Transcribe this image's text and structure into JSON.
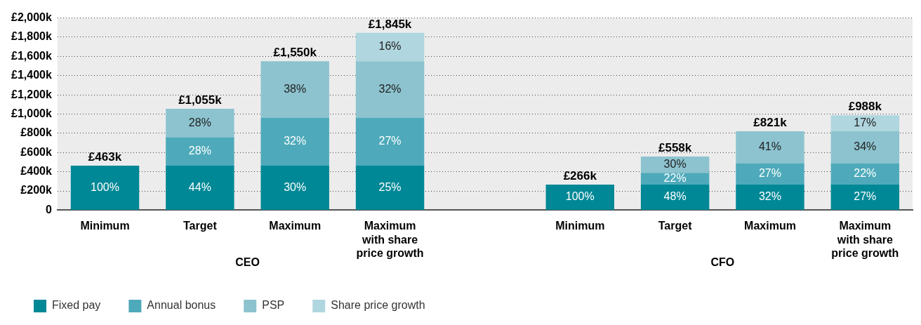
{
  "chart_data": {
    "type": "bar",
    "stacked": true,
    "categories": [
      "Minimum",
      "Target",
      "Maximum",
      "Maximum with share price growth",
      null,
      "Minimum",
      "Target",
      "Maximum",
      "Maximum with share price growth"
    ],
    "series": [
      {
        "name": "Fixed pay",
        "color": "#008896",
        "values": [
          463,
          463,
          463,
          463,
          null,
          266,
          266,
          266,
          266
        ]
      },
      {
        "name": "Annual bonus",
        "color": "#4eaaba",
        "values": [
          null,
          296,
          496,
          496,
          null,
          null,
          123,
          222,
          222
        ]
      },
      {
        "name": "PSP",
        "color": "#8cc3cf",
        "values": [
          null,
          296,
          591,
          591,
          null,
          null,
          169,
          333,
          333
        ]
      },
      {
        "name": "Share price growth",
        "color": "#b0d6df",
        "values": [
          null,
          null,
          null,
          295,
          null,
          null,
          null,
          null,
          167
        ]
      }
    ],
    "totals": [
      "£463k",
      "£1,055k",
      "£1,550k",
      "£1,845k",
      null,
      "£266k",
      "£558k",
      "£821k",
      "£988k"
    ],
    "ylim": [
      0,
      2000
    ],
    "yticks": [
      0,
      {
        "value": 200,
        "label": "£200k"
      },
      {
        "value": 400,
        "label": "£400k"
      },
      {
        "value": 600,
        "label": "£600k"
      },
      {
        "value": 800,
        "label": "£800k"
      },
      {
        "value": 1000,
        "label": "£1,000k"
      },
      {
        "value": 1200,
        "label": "£1,200k"
      },
      {
        "value": 1400,
        "label": "£1,400k"
      },
      {
        "value": 1600,
        "label": "£1,600k"
      },
      {
        "value": 1800,
        "label": "£1,800k"
      },
      {
        "value": 2000,
        "label": "£2,000k"
      }
    ],
    "annotations": [
      "CEO",
      "CFO",
      "100%",
      "44%",
      "28%",
      "28%",
      "30%",
      "32%",
      "38%",
      "25%",
      "27%",
      "32%",
      "16%",
      "100%",
      "48%",
      "22%",
      "30%",
      "32%",
      "27%",
      "41%",
      "27%",
      "22%",
      "34%",
      "17%"
    ],
    "grid": "y",
    "legend": "bottom left"
  }
}
